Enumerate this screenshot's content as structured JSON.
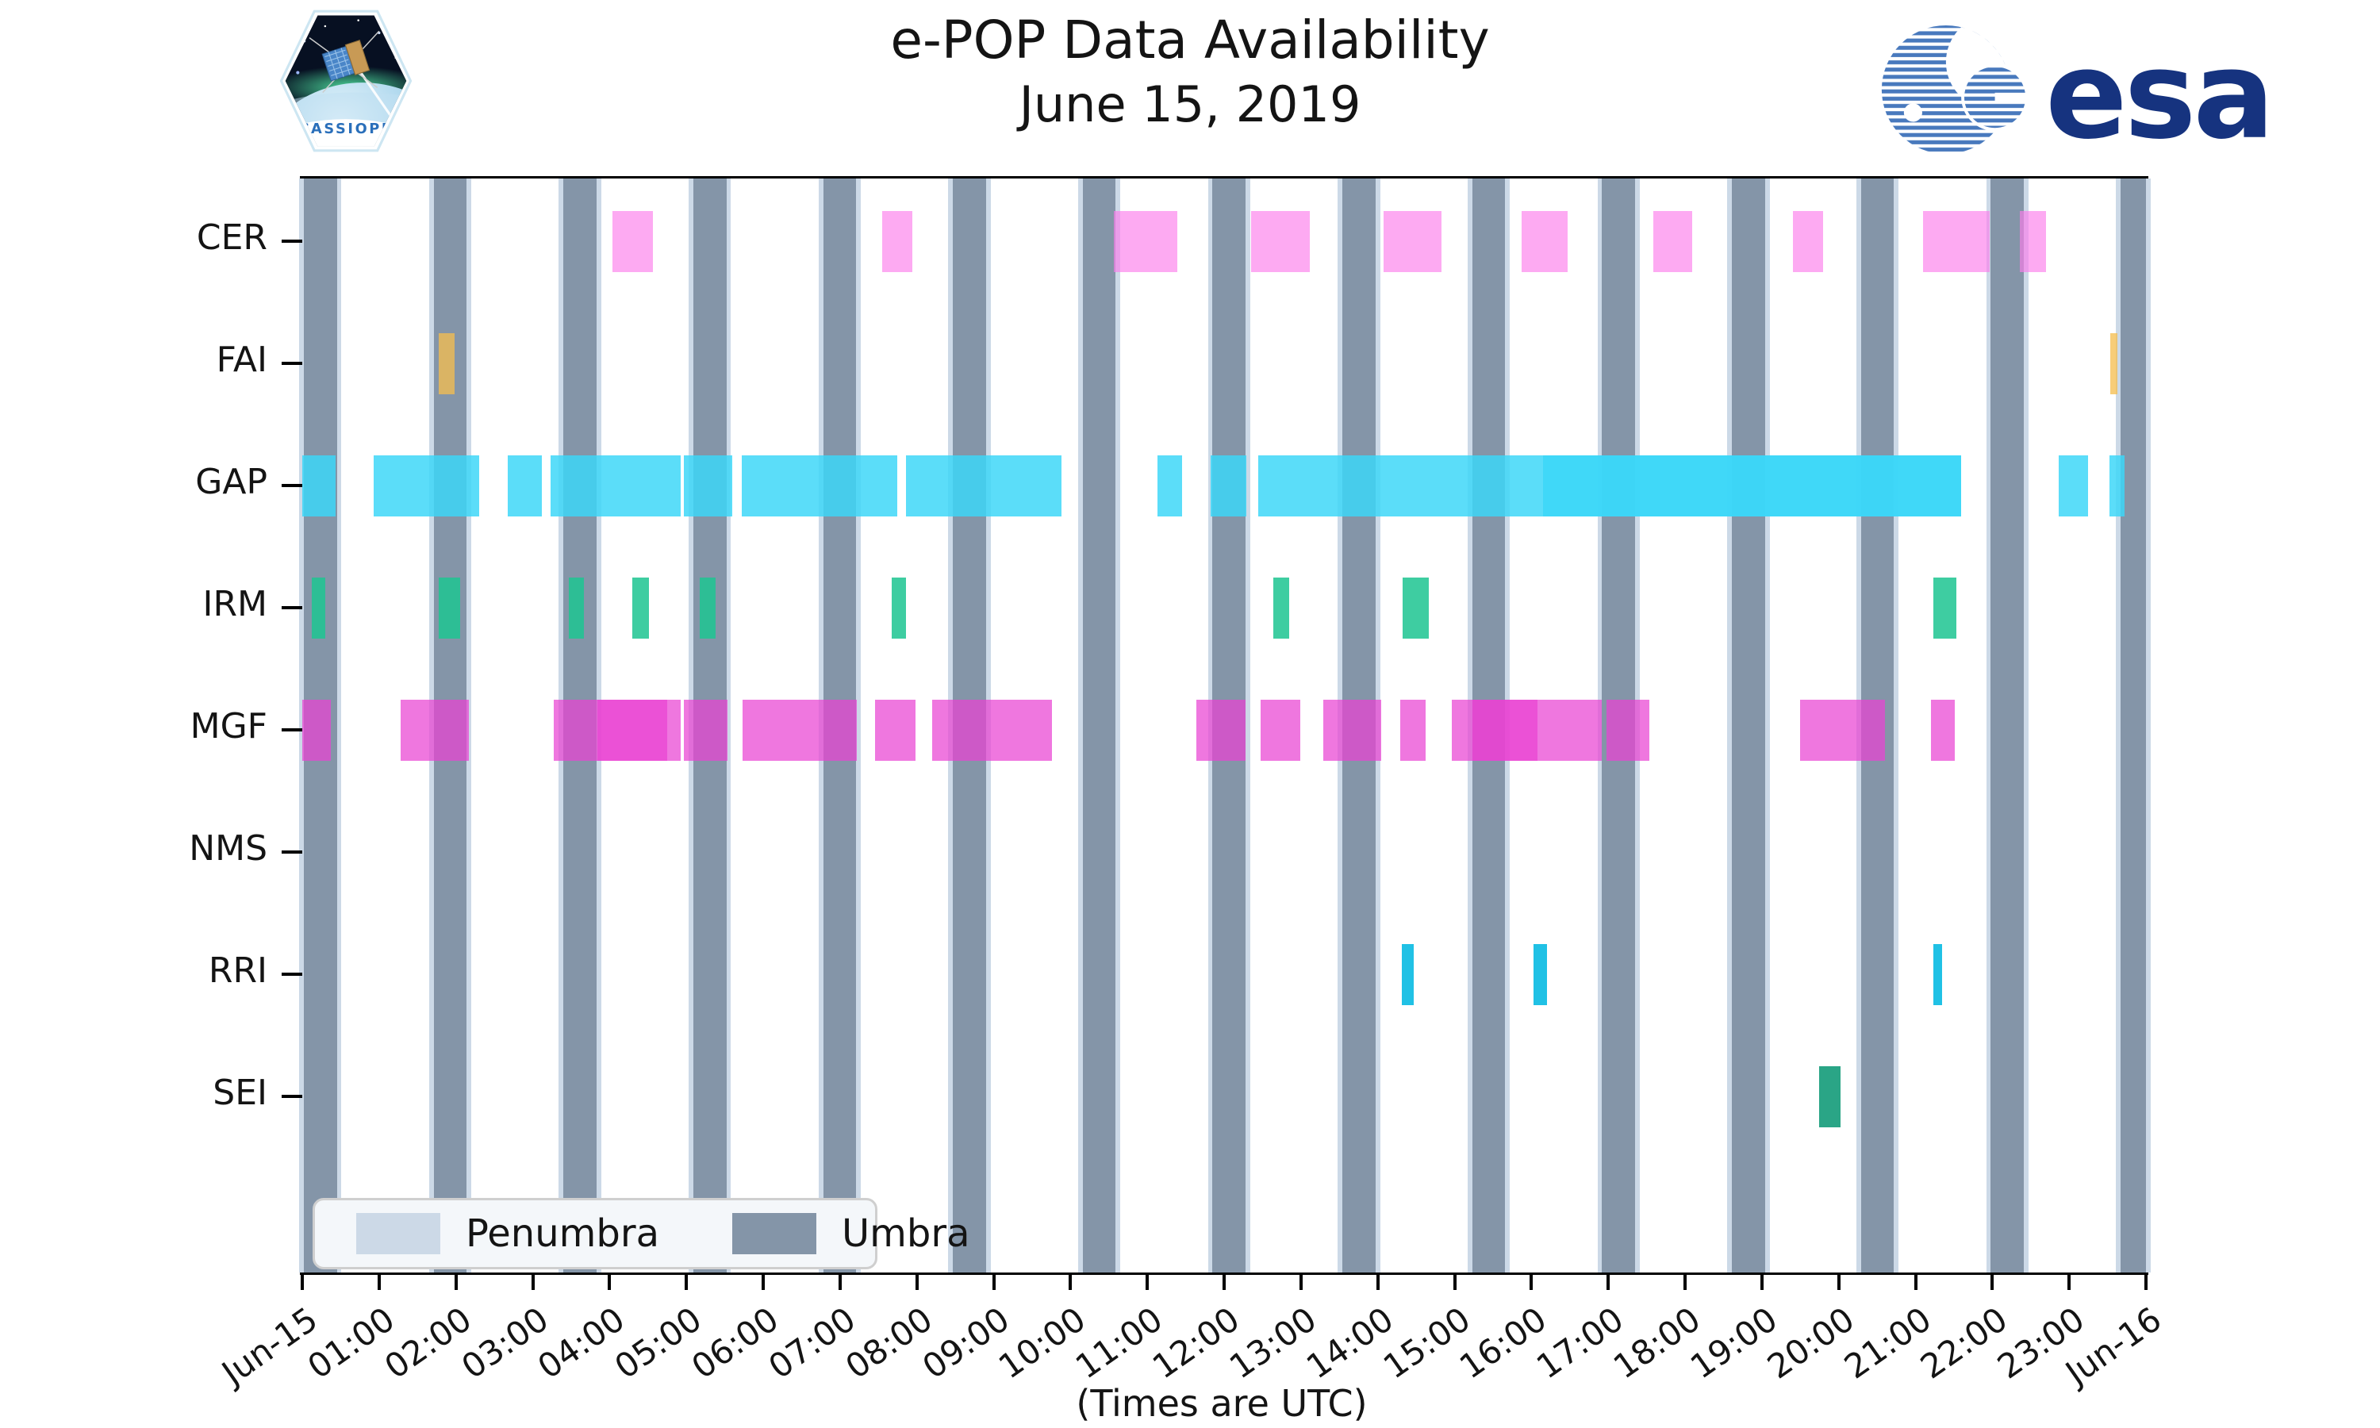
{
  "header": {
    "title": "e-POP Data Availability",
    "subtitle": "June 15, 2019",
    "mission_patch_text": "CASSIOPE",
    "esa_logo_text": "esa",
    "esa_blue": "#4879bd",
    "esa_navy": "#16337f"
  },
  "chart_data": {
    "type": "gantt",
    "title": "e-POP Data Availability",
    "subtitle": "June 15, 2019",
    "xlabel": "(Times are UTC)",
    "x_axis": {
      "start_hour": 0,
      "end_hour": 24,
      "tick_hours": [
        0,
        1,
        2,
        3,
        4,
        5,
        6,
        7,
        8,
        9,
        10,
        11,
        12,
        13,
        14,
        15,
        16,
        17,
        18,
        19,
        20,
        21,
        22,
        23,
        24
      ],
      "tick_labels": [
        "Jun-15",
        "01:00",
        "02:00",
        "03:00",
        "04:00",
        "05:00",
        "06:00",
        "07:00",
        "08:00",
        "09:00",
        "10:00",
        "11:00",
        "12:00",
        "13:00",
        "14:00",
        "15:00",
        "16:00",
        "17:00",
        "18:00",
        "19:00",
        "20:00",
        "21:00",
        "22:00",
        "23:00",
        "Jun-16"
      ]
    },
    "rows": [
      "CER",
      "FAI",
      "GAP",
      "IRM",
      "MGF",
      "NMS",
      "RRI",
      "SEI"
    ],
    "series": [
      {
        "name": "CER",
        "color": "rgba(252,125,235,0.65)",
        "intervals": [
          [
            4.04,
            4.56
          ],
          [
            7.55,
            7.94
          ],
          [
            10.56,
            11.39
          ],
          [
            12.35,
            13.12
          ],
          [
            14.08,
            14.83
          ],
          [
            15.87,
            16.47
          ],
          [
            17.59,
            18.09
          ],
          [
            19.4,
            19.8
          ],
          [
            21.1,
            21.97
          ],
          [
            22.36,
            22.7
          ]
        ]
      },
      {
        "name": "FAI",
        "color": "rgba(244,190,80,0.77)",
        "intervals": [
          [
            1.78,
            1.98
          ],
          [
            23.54,
            23.63
          ]
        ]
      },
      {
        "name": "GAP",
        "color": "rgba(59,214,248,0.84)",
        "intervals": [
          [
            0.0,
            0.43
          ],
          [
            0.93,
            2.3
          ],
          [
            2.67,
            3.12
          ],
          [
            3.23,
            4.93
          ],
          [
            4.97,
            5.6
          ],
          [
            5.72,
            7.75
          ],
          [
            7.86,
            9.88
          ],
          [
            11.13,
            11.45
          ],
          [
            11.82,
            12.29
          ],
          [
            12.44,
            21.59
          ],
          [
            22.86,
            23.25
          ],
          [
            23.53,
            23.72
          ]
        ],
        "overlay_intervals": [
          [
            16.15,
            21.59
          ]
        ]
      },
      {
        "name": "IRM",
        "color": "rgba(30,197,145,0.86)",
        "intervals": [
          [
            0.12,
            0.3
          ],
          [
            1.78,
            2.05
          ],
          [
            3.47,
            3.67
          ],
          [
            4.3,
            4.51
          ],
          [
            5.17,
            5.38
          ],
          [
            7.67,
            7.86
          ],
          [
            12.64,
            12.85
          ],
          [
            14.32,
            14.66
          ],
          [
            21.23,
            21.53
          ]
        ]
      },
      {
        "name": "MGF",
        "color": "rgba(233,66,211,0.72)",
        "intervals": [
          [
            0.0,
            0.37
          ],
          [
            1.28,
            2.17
          ],
          [
            3.27,
            4.93
          ],
          [
            4.97,
            5.54
          ],
          [
            5.73,
            7.22
          ],
          [
            7.46,
            7.98
          ],
          [
            8.2,
            9.76
          ],
          [
            11.64,
            12.28
          ],
          [
            12.48,
            12.99
          ],
          [
            13.29,
            14.05
          ],
          [
            14.29,
            14.62
          ],
          [
            14.96,
            16.92
          ],
          [
            16.98,
            17.54
          ],
          [
            19.5,
            20.6
          ],
          [
            21.2,
            21.51
          ]
        ],
        "overlay_intervals": [
          [
            3.84,
            4.75
          ],
          [
            15.23,
            16.08
          ]
        ]
      },
      {
        "name": "NMS",
        "color": "rgba(128,128,128,0.8)",
        "intervals": []
      },
      {
        "name": "RRI",
        "color": "rgba(20,190,228,0.95)",
        "intervals": [
          [
            14.31,
            14.47
          ],
          [
            16.03,
            16.2
          ],
          [
            21.23,
            21.35
          ]
        ]
      },
      {
        "name": "SEI",
        "color": "rgba(35,162,130,0.97)",
        "intervals": [
          [
            19.75,
            20.02
          ]
        ]
      }
    ],
    "shading": {
      "umbra": {
        "label": "Umbra",
        "color": "#8495a8",
        "intervals": [
          [
            0.02,
            0.45
          ],
          [
            1.71,
            2.14
          ],
          [
            3.4,
            3.83
          ],
          [
            5.09,
            5.52
          ],
          [
            6.78,
            7.21
          ],
          [
            8.47,
            8.9
          ],
          [
            10.16,
            10.59
          ],
          [
            11.85,
            12.28
          ],
          [
            13.54,
            13.97
          ],
          [
            15.23,
            15.66
          ],
          [
            16.92,
            17.35
          ],
          [
            18.61,
            19.04
          ],
          [
            20.29,
            20.72
          ],
          [
            21.98,
            22.41
          ],
          [
            23.67,
            24.0
          ]
        ]
      },
      "penumbra": {
        "label": "Penumbra",
        "color": "#ccd9e7",
        "edge_width_hours": 0.06
      }
    },
    "legend": [
      {
        "label": "Penumbra",
        "color": "#ccd9e7"
      },
      {
        "label": "Umbra",
        "color": "#8495a8"
      }
    ],
    "legend_position": "lower-left",
    "grid": false
  }
}
